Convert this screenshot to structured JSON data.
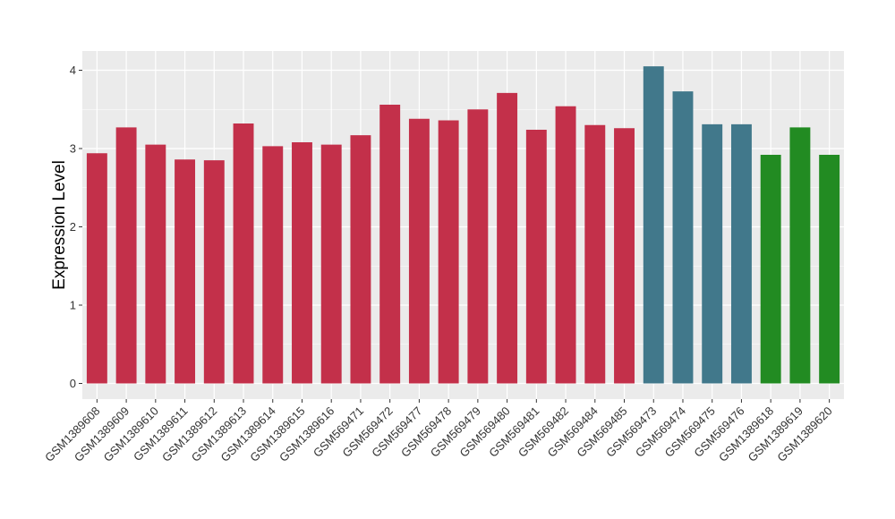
{
  "chart_data": {
    "type": "bar",
    "title": "",
    "xlabel": "",
    "ylabel": "Expression Level",
    "ylim": [
      0,
      4.2
    ],
    "yticks": [
      0,
      1,
      2,
      3,
      4
    ],
    "grid": true,
    "categories": [
      "GSM1389608",
      "GSM1389609",
      "GSM1389610",
      "GSM1389611",
      "GSM1389612",
      "GSM1389613",
      "GSM1389614",
      "GSM1389615",
      "GSM1389616",
      "GSM569471",
      "GSM569472",
      "GSM569477",
      "GSM569478",
      "GSM569479",
      "GSM569480",
      "GSM569481",
      "GSM569482",
      "GSM569484",
      "GSM569485",
      "GSM569473",
      "GSM569474",
      "GSM569475",
      "GSM569476",
      "GSM1389618",
      "GSM1389619",
      "GSM1389620"
    ],
    "values": [
      2.94,
      3.27,
      3.05,
      2.86,
      2.85,
      3.32,
      3.03,
      3.08,
      3.05,
      3.17,
      3.56,
      3.38,
      3.36,
      3.5,
      3.71,
      3.24,
      3.54,
      3.3,
      3.26,
      4.05,
      3.73,
      3.31,
      3.31,
      2.92,
      3.27,
      2.92
    ],
    "colors": [
      "#c3304a",
      "#c3304a",
      "#c3304a",
      "#c3304a",
      "#c3304a",
      "#c3304a",
      "#c3304a",
      "#c3304a",
      "#c3304a",
      "#c3304a",
      "#c3304a",
      "#c3304a",
      "#c3304a",
      "#c3304a",
      "#c3304a",
      "#c3304a",
      "#c3304a",
      "#c3304a",
      "#c3304a",
      "#41788b",
      "#41788b",
      "#41788b",
      "#41788b",
      "#228b22",
      "#228b22",
      "#228b22"
    ],
    "panel_background": "#ebebeb",
    "grid_color": "#ffffff"
  }
}
